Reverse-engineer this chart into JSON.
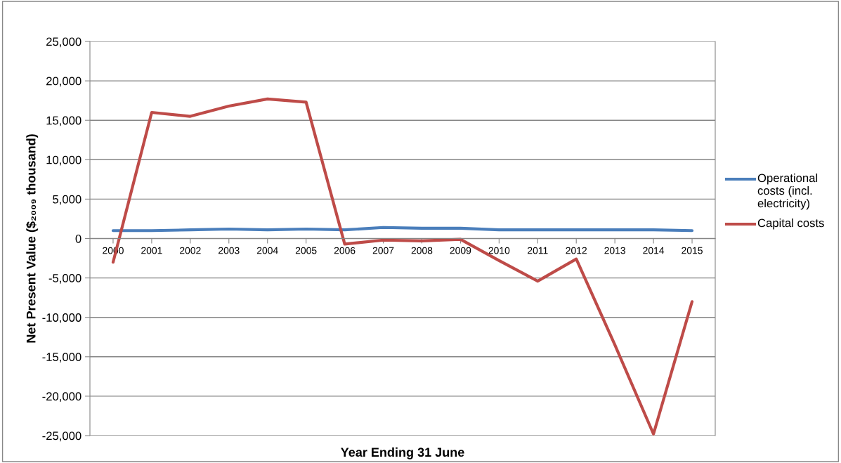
{
  "chart_data": {
    "type": "line",
    "xlabel": "Year Ending 31 June",
    "ylabel": "Net Present Value ($₂₀₀₉ thousand)",
    "categories": [
      "2000",
      "2001",
      "2002",
      "2003",
      "2004",
      "2005",
      "2006",
      "2007",
      "2008",
      "2009",
      "2010",
      "2011",
      "2012",
      "2013",
      "2014",
      "2015"
    ],
    "series": [
      {
        "name": "Operational costs (incl. electricity)",
        "color": "#4a7ebb",
        "values": [
          1000,
          1000,
          1100,
          1200,
          1100,
          1200,
          1100,
          1400,
          1300,
          1300,
          1100,
          1100,
          1100,
          1100,
          1100,
          1000
        ]
      },
      {
        "name": "Capital costs",
        "color": "#be4b48",
        "values": [
          -3000,
          16000,
          15500,
          16800,
          17700,
          17300,
          -700,
          -200,
          -300,
          -100,
          -2800,
          -5400,
          -2600,
          -13500,
          -24800,
          -8000
        ]
      }
    ],
    "ylim": [
      -25000,
      25000
    ],
    "yticks": [
      {
        "value": -25000,
        "label": "-25,000"
      },
      {
        "value": -20000,
        "label": "-20,000"
      },
      {
        "value": -15000,
        "label": "-15,000"
      },
      {
        "value": -10000,
        "label": "-10,000"
      },
      {
        "value": -5000,
        "label": "-5,000"
      },
      {
        "value": 0,
        "label": "0"
      },
      {
        "value": 5000,
        "label": "5,000"
      },
      {
        "value": 10000,
        "label": "10,000"
      },
      {
        "value": 15000,
        "label": "15,000"
      },
      {
        "value": 20000,
        "label": "20,000"
      },
      {
        "value": 25000,
        "label": "25,000"
      }
    ],
    "grid": "y",
    "legend": "right",
    "marker": "none",
    "line_style": "solid"
  }
}
